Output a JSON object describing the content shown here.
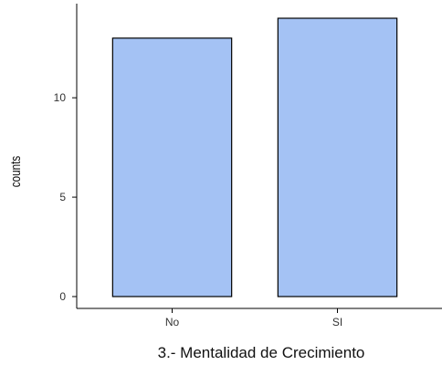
{
  "chart_data": {
    "type": "bar",
    "categories": [
      "No",
      "SI"
    ],
    "values": [
      13,
      14
    ],
    "xlabel": "3.- Mentalidad de Crecimiento",
    "ylabel": "counts",
    "ylim": [
      0,
      14.5
    ],
    "yticks": [
      0,
      5,
      10
    ],
    "grid": false,
    "legend": "none",
    "bar_fill": "#a4c2f4",
    "bar_stroke": "#000000",
    "axis_color": "#000000"
  }
}
